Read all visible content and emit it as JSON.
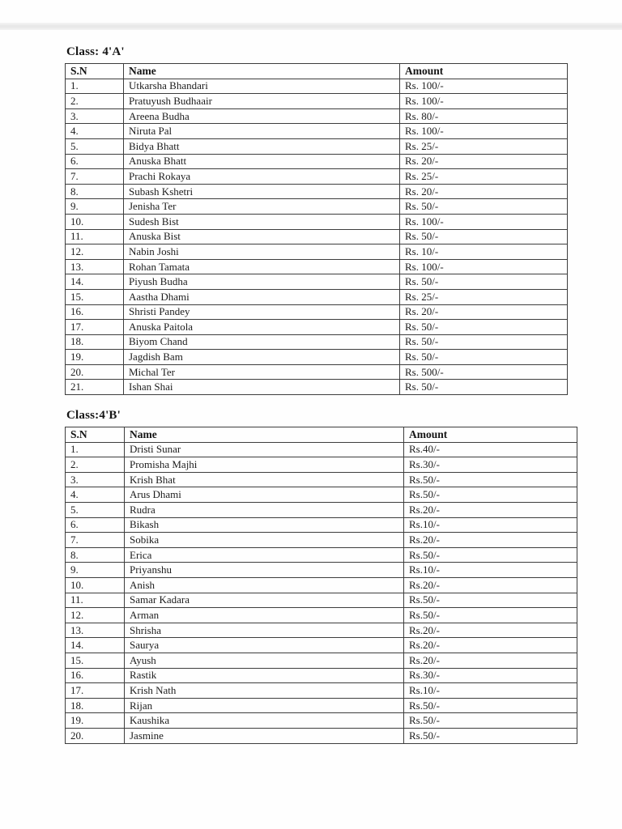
{
  "page": {
    "background": "#ffffff",
    "top_band_color": "#e7e7e7",
    "border_color": "#3d3d3d",
    "text_color": "#1d1d1d"
  },
  "tables": [
    {
      "title": "Class: 4'A'",
      "headers": [
        "S.N",
        "Name",
        "Amount"
      ],
      "rows": [
        [
          "1.",
          "Utkarsha Bhandari",
          "Rs. 100/-"
        ],
        [
          "2.",
          "Pratuyush Budhaair",
          "Rs. 100/-"
        ],
        [
          "3.",
          "Areena Budha",
          "Rs. 80/-"
        ],
        [
          "4.",
          "Niruta Pal",
          "Rs. 100/-"
        ],
        [
          "5.",
          "Bidya Bhatt",
          "Rs. 25/-"
        ],
        [
          "6.",
          "Anuska Bhatt",
          "Rs. 20/-"
        ],
        [
          "7.",
          "Prachi Rokaya",
          "Rs. 25/-"
        ],
        [
          "8.",
          "Subash Kshetri",
          "Rs. 20/-"
        ],
        [
          "9.",
          "Jenisha Ter",
          "Rs. 50/-"
        ],
        [
          "10.",
          "Sudesh Bist",
          "Rs. 100/-"
        ],
        [
          "11.",
          "Anuska Bist",
          "Rs. 50/-"
        ],
        [
          "12.",
          "Nabin Joshi",
          "Rs. 10/-"
        ],
        [
          "13.",
          "Rohan Tamata",
          "Rs. 100/-"
        ],
        [
          "14.",
          "Piyush Budha",
          "Rs. 50/-"
        ],
        [
          "15.",
          "Aastha Dhami",
          "Rs. 25/-"
        ],
        [
          "16.",
          "Shristi Pandey",
          "Rs. 20/-"
        ],
        [
          "17.",
          "Anuska Paitola",
          "Rs. 50/-"
        ],
        [
          "18.",
          "Biyom Chand",
          "Rs. 50/-"
        ],
        [
          "19.",
          "Jagdish Bam",
          "Rs. 50/-"
        ],
        [
          "20.",
          "Michal Ter",
          "Rs. 500/-"
        ],
        [
          "21.",
          "Ishan Shai",
          "Rs. 50/-"
        ]
      ]
    },
    {
      "title": "Class:4'B'",
      "headers": [
        "S.N",
        "Name",
        "Amount"
      ],
      "rows": [
        [
          "1.",
          "Dristi Sunar",
          "Rs.40/-"
        ],
        [
          "2.",
          "Promisha Majhi",
          "Rs.30/-"
        ],
        [
          "3.",
          "Krish Bhat",
          "Rs.50/-"
        ],
        [
          "4.",
          "Arus Dhami",
          "Rs.50/-"
        ],
        [
          "5.",
          "Rudra",
          "Rs.20/-"
        ],
        [
          "6.",
          "Bikash",
          "Rs.10/-"
        ],
        [
          "7.",
          "Sobika",
          "Rs.20/-"
        ],
        [
          "8.",
          "Erica",
          "Rs.50/-"
        ],
        [
          "9.",
          "Priyanshu",
          "Rs.10/-"
        ],
        [
          "10.",
          "Anish",
          "Rs.20/-"
        ],
        [
          "11.",
          "Samar Kadara",
          "Rs.50/-"
        ],
        [
          "12.",
          "Arman",
          "Rs.50/-"
        ],
        [
          "13.",
          "Shrisha",
          "Rs.20/-"
        ],
        [
          "14.",
          "Saurya",
          "Rs.20/-"
        ],
        [
          "15.",
          "Ayush",
          "Rs.20/-"
        ],
        [
          "16.",
          "Rastik",
          "Rs.30/-"
        ],
        [
          "17.",
          "Krish Nath",
          "Rs.10/-"
        ],
        [
          "18.",
          "Rijan",
          "Rs.50/-"
        ],
        [
          "19.",
          "Kaushika",
          "Rs.50/-"
        ],
        [
          "20.",
          "Jasmine",
          "Rs.50/-"
        ]
      ]
    }
  ]
}
